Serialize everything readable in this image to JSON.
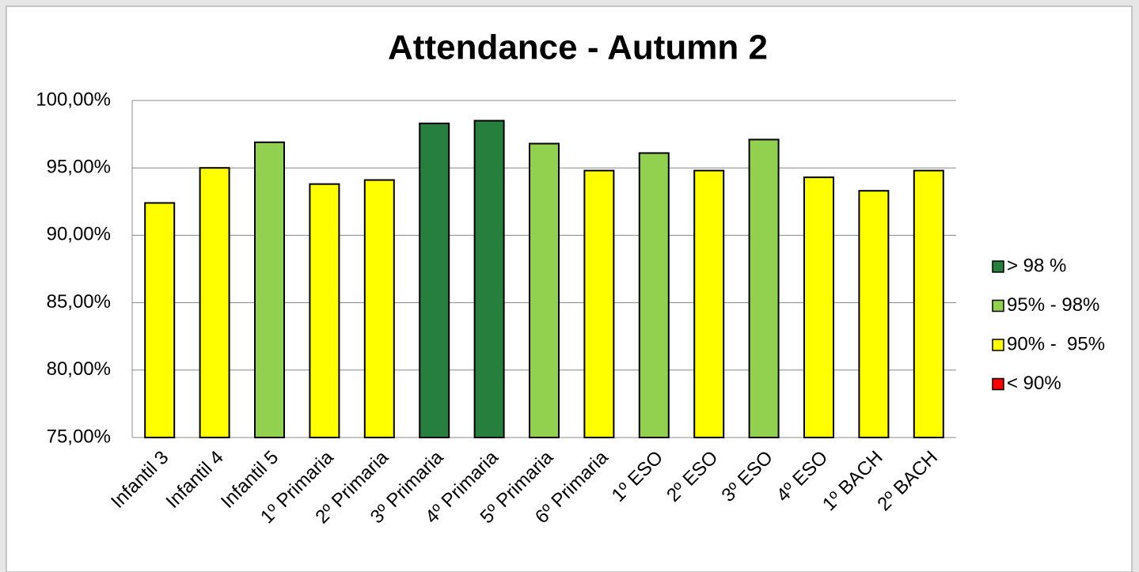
{
  "chart_data": {
    "type": "bar",
    "title": "Attendance - Autumn 2",
    "categories": [
      "Infantil 3",
      "Infantil 4",
      "Infantil 5",
      "1º Primaria",
      "2º Primaria",
      "3º Primaria",
      "4º Primaria",
      "5º Primaria",
      "6º Primaria",
      "1º ESO",
      "2º ESO",
      "3º ESO",
      "4º ESO",
      "1º BACH",
      "2º BACH"
    ],
    "values": [
      92.4,
      95.0,
      96.9,
      93.8,
      94.1,
      98.3,
      98.5,
      96.8,
      94.8,
      96.1,
      94.8,
      97.1,
      94.3,
      93.3,
      94.8
    ],
    "colors": [
      "#ffff00",
      "#ffff00",
      "#92d050",
      "#ffff00",
      "#ffff00",
      "#267f3c",
      "#267f3c",
      "#92d050",
      "#ffff00",
      "#92d050",
      "#ffff00",
      "#92d050",
      "#ffff00",
      "#ffff00",
      "#ffff00"
    ],
    "ylim": [
      75,
      100
    ],
    "yticks": [
      {
        "value": 75,
        "label": "75,00%"
      },
      {
        "value": 80,
        "label": "80,00%"
      },
      {
        "value": 85,
        "label": "85,00%"
      },
      {
        "value": 90,
        "label": "90,00%"
      },
      {
        "value": 95,
        "label": "95,00%"
      },
      {
        "value": 100,
        "label": "100,00%"
      }
    ],
    "grid": true,
    "legend_position": "right",
    "legend": [
      {
        "name": "> 98 %",
        "color": "#267f3c"
      },
      {
        "name": "95% - 98%",
        "color": "#92d050"
      },
      {
        "name": "90% -  95%",
        "color": "#ffff00"
      },
      {
        "name": "< 90%",
        "color": "#ff0000"
      }
    ]
  }
}
